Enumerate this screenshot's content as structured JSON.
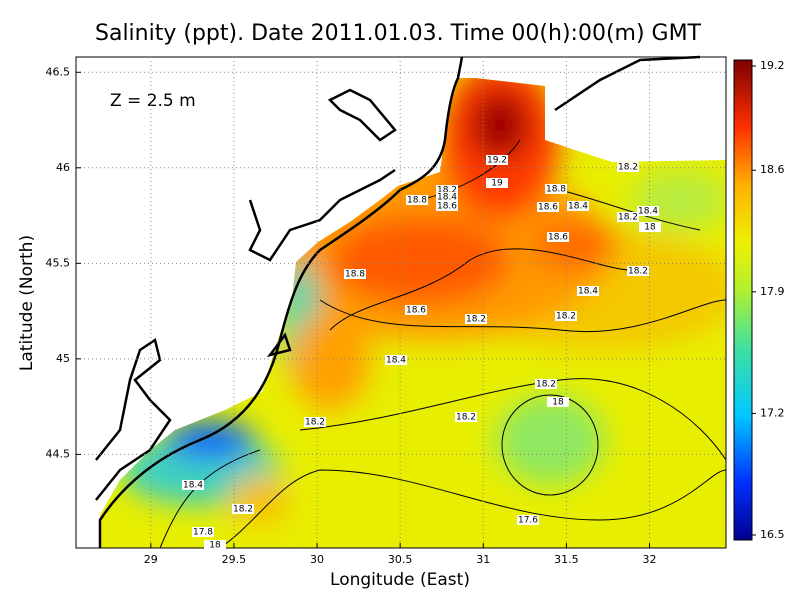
{
  "chart_data": {
    "type": "map",
    "title": "Salinity (ppt). Date 2011.01.03. Time 00(h):00(m) GMT",
    "annotation": "Z = 2.5 m",
    "x_label": "Longitude (East)",
    "y_label": "Latitude (North)",
    "xlim": [
      28.55,
      32.46
    ],
    "ylim": [
      44.01,
      46.58
    ],
    "xticks": [
      29,
      29.5,
      30,
      30.5,
      31,
      31.5,
      32
    ],
    "yticks": [
      44.5,
      45,
      45.5,
      46,
      46.5
    ],
    "grid": true,
    "colorbar": {
      "lim": [
        16.5,
        19.2
      ],
      "ticks": [
        16.5,
        17.2,
        17.9,
        18.6,
        19.2
      ]
    },
    "contour_labels": [
      19.2,
      19,
      18.2,
      18.4,
      18.8,
      18.6,
      18.8,
      18.6,
      18.4,
      18.2,
      18.4,
      18.2,
      18,
      18.6,
      18.8,
      18.2,
      18.4,
      18.6,
      18.2,
      18.2,
      18.4,
      18.2,
      18,
      18.2,
      18.2,
      17.6,
      18.4,
      18.2,
      17.8,
      18
    ]
  }
}
